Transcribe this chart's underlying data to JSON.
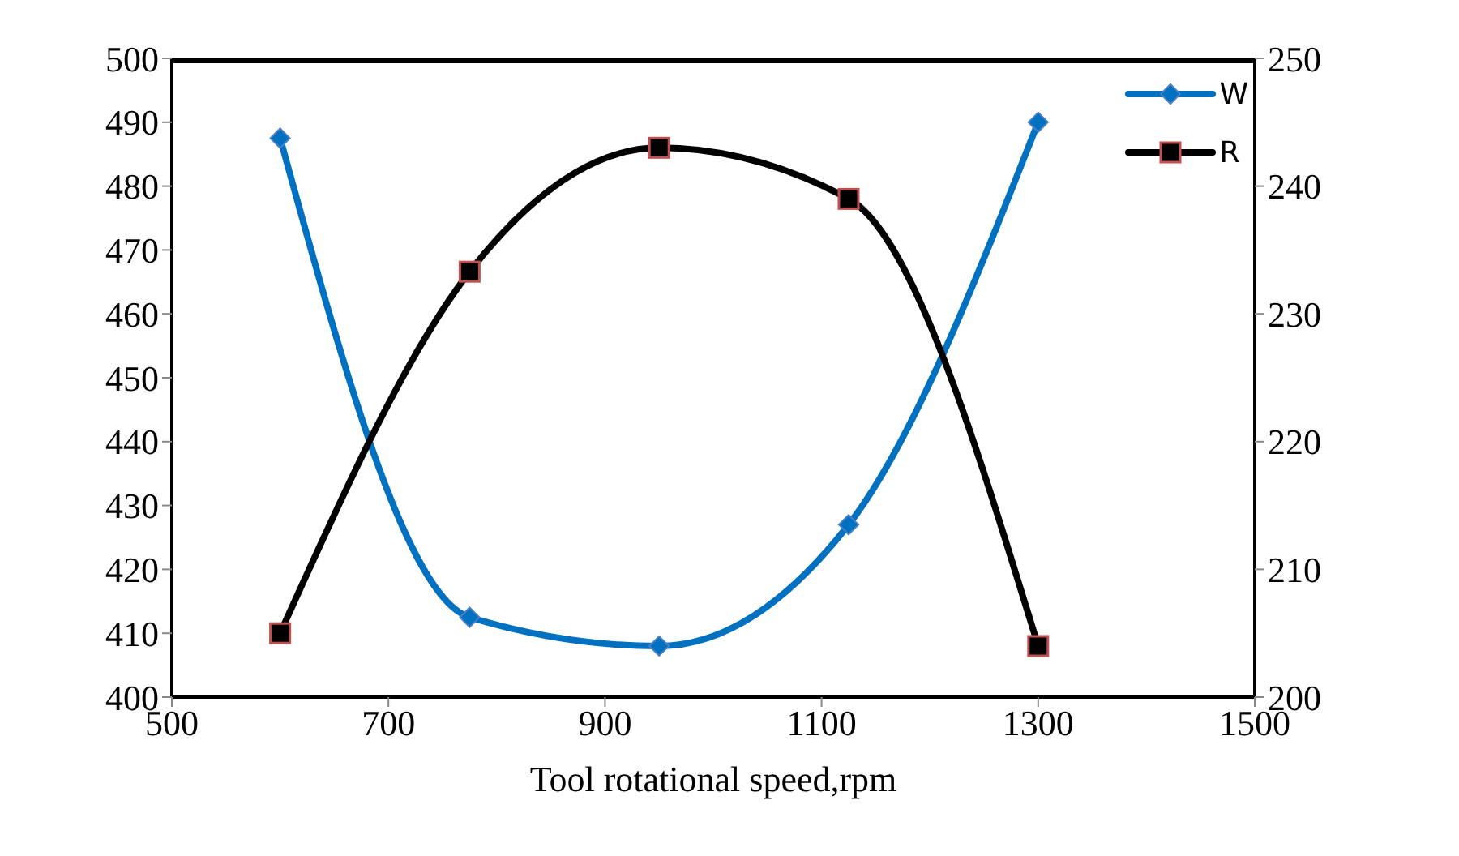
{
  "chart_data": {
    "type": "line",
    "xlabel": "Tool rotational speed,rpm",
    "x": [
      600,
      775,
      950,
      1125,
      1300
    ],
    "series": [
      {
        "name": "W",
        "color": "#0070c0",
        "values": [
          487.5,
          412.5,
          408,
          427,
          490
        ],
        "marker": "diamond"
      },
      {
        "name": "R",
        "color": "#000000",
        "values": [
          205,
          233.3,
          243,
          239,
          204
        ],
        "marker": "square",
        "axis": "y2"
      }
    ],
    "xlim": [
      500,
      1500
    ],
    "xticks": [
      500,
      700,
      900,
      1100,
      1300,
      1500
    ],
    "ylim": [
      400,
      500
    ],
    "yticks": [
      400,
      410,
      420,
      430,
      440,
      450,
      460,
      470,
      480,
      490,
      500
    ],
    "y2lim": [
      200,
      250
    ],
    "y2ticks": [
      200,
      210,
      220,
      230,
      240,
      250
    ],
    "grid": false,
    "legend": "top right",
    "line_style": "solid"
  }
}
